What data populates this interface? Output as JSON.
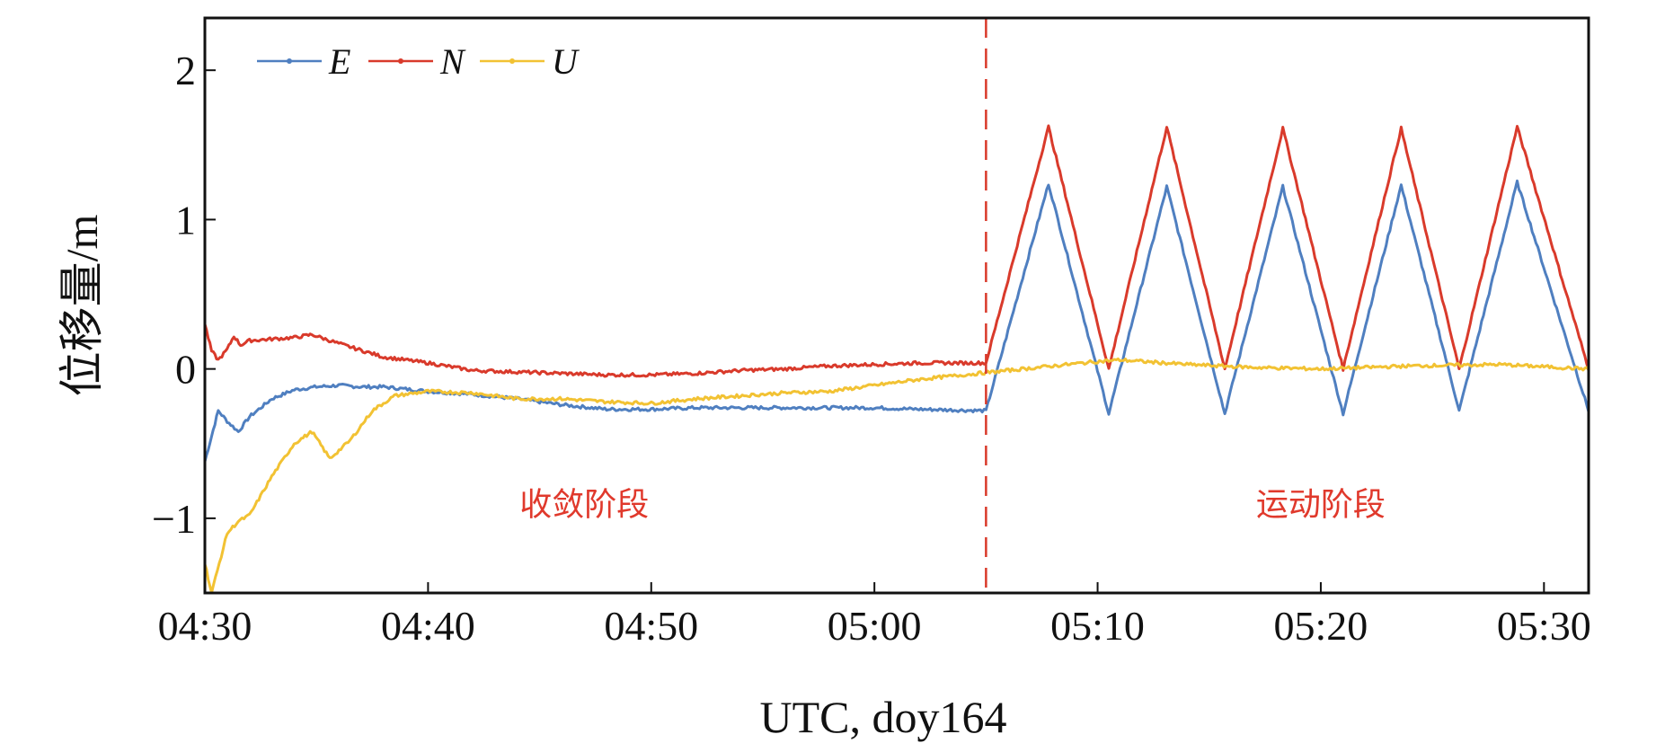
{
  "chart_data": {
    "type": "line",
    "title": "",
    "xlabel": "UTC, doy164",
    "ylabel": "位移量/m",
    "xlim": [
      "04:30",
      "05:32"
    ],
    "ylim": [
      -1.5,
      2.35
    ],
    "x_ticks": [
      "04:30",
      "04:40",
      "04:50",
      "05:00",
      "05:10",
      "05:20",
      "05:30"
    ],
    "y_ticks": [
      {
        "value": -1,
        "label": "−1"
      },
      {
        "value": 0,
        "label": "0"
      },
      {
        "value": 1,
        "label": "1"
      },
      {
        "value": 2,
        "label": "2"
      }
    ],
    "grid": false,
    "legend_position": "top-left",
    "divider_time": "05:05",
    "phase_labels": [
      {
        "text": "收敛阶段",
        "time": "04:47",
        "value": -0.98
      },
      {
        "text": "运动阶段",
        "time": "05:20",
        "value": -0.98
      }
    ],
    "series": [
      {
        "name": "E",
        "color": "#4f7fc0",
        "points": [
          [
            "04:30",
            -0.62
          ],
          [
            "04:30.3",
            -0.45
          ],
          [
            "04:30.6",
            -0.28
          ],
          [
            "04:31",
            -0.35
          ],
          [
            "04:31.5",
            -0.42
          ],
          [
            "04:32",
            -0.32
          ],
          [
            "04:33",
            -0.2
          ],
          [
            "04:34",
            -0.14
          ],
          [
            "04:35",
            -0.12
          ],
          [
            "04:36",
            -0.11
          ],
          [
            "04:37",
            -0.12
          ],
          [
            "04:38",
            -0.12
          ],
          [
            "04:40",
            -0.15
          ],
          [
            "04:42",
            -0.17
          ],
          [
            "04:44",
            -0.2
          ],
          [
            "04:46",
            -0.24
          ],
          [
            "04:48",
            -0.27
          ],
          [
            "04:50",
            -0.27
          ],
          [
            "04:52",
            -0.26
          ],
          [
            "04:54",
            -0.26
          ],
          [
            "04:56",
            -0.26
          ],
          [
            "04:58",
            -0.26
          ],
          [
            "05:00",
            -0.26
          ],
          [
            "05:02",
            -0.27
          ],
          [
            "05:05",
            -0.28
          ],
          [
            "05:07.8",
            1.24
          ],
          [
            "05:10.5",
            -0.3
          ],
          [
            "05:13.1",
            1.22
          ],
          [
            "05:15.7",
            -0.3
          ],
          [
            "05:18.3",
            1.22
          ],
          [
            "05:21",
            -0.3
          ],
          [
            "05:23.6",
            1.23
          ],
          [
            "05:26.2",
            -0.28
          ],
          [
            "05:28.8",
            1.25
          ],
          [
            "05:32",
            -0.28
          ]
        ]
      },
      {
        "name": "N",
        "color": "#d93a2b",
        "points": [
          [
            "04:30",
            0.3
          ],
          [
            "04:30.3",
            0.12
          ],
          [
            "04:30.6",
            0.06
          ],
          [
            "04:31",
            0.13
          ],
          [
            "04:31.3",
            0.22
          ],
          [
            "04:31.6",
            0.16
          ],
          [
            "04:32",
            0.19
          ],
          [
            "04:33",
            0.2
          ],
          [
            "04:34",
            0.21
          ],
          [
            "04:34.8",
            0.23
          ],
          [
            "04:36",
            0.17
          ],
          [
            "04:38",
            0.08
          ],
          [
            "04:40",
            0.04
          ],
          [
            "04:42",
            -0.01
          ],
          [
            "04:44",
            -0.02
          ],
          [
            "04:46",
            -0.03
          ],
          [
            "04:48",
            -0.04
          ],
          [
            "04:50",
            -0.04
          ],
          [
            "04:52",
            -0.03
          ],
          [
            "04:54",
            -0.01
          ],
          [
            "04:56",
            0.0
          ],
          [
            "04:58",
            0.02
          ],
          [
            "05:00",
            0.03
          ],
          [
            "05:02",
            0.04
          ],
          [
            "05:05",
            0.04
          ],
          [
            "05:07.8",
            1.62
          ],
          [
            "05:10.5",
            0.0
          ],
          [
            "05:13.1",
            1.62
          ],
          [
            "05:15.7",
            0.0
          ],
          [
            "05:18.3",
            1.61
          ],
          [
            "05:21",
            0.0
          ],
          [
            "05:23.6",
            1.61
          ],
          [
            "05:26.2",
            0.0
          ],
          [
            "05:28.8",
            1.62
          ],
          [
            "05:32",
            0.0
          ]
        ]
      },
      {
        "name": "U",
        "color": "#f2c233",
        "points": [
          [
            "04:30",
            -1.3
          ],
          [
            "04:30.3",
            -1.5
          ],
          [
            "04:31",
            -1.1
          ],
          [
            "04:31.5",
            -1.02
          ],
          [
            "04:32",
            -0.98
          ],
          [
            "04:33",
            -0.72
          ],
          [
            "04:34",
            -0.5
          ],
          [
            "04:34.8",
            -0.42
          ],
          [
            "04:35.6",
            -0.6
          ],
          [
            "04:36.5",
            -0.48
          ],
          [
            "04:37.5",
            -0.28
          ],
          [
            "04:38.5",
            -0.18
          ],
          [
            "04:40",
            -0.15
          ],
          [
            "04:42",
            -0.16
          ],
          [
            "04:44",
            -0.2
          ],
          [
            "04:46",
            -0.2
          ],
          [
            "04:48",
            -0.22
          ],
          [
            "04:50",
            -0.23
          ],
          [
            "04:52",
            -0.2
          ],
          [
            "04:54",
            -0.18
          ],
          [
            "04:56",
            -0.16
          ],
          [
            "04:58",
            -0.15
          ],
          [
            "05:00",
            -0.11
          ],
          [
            "05:02",
            -0.07
          ],
          [
            "05:04",
            -0.04
          ],
          [
            "05:06",
            -0.01
          ],
          [
            "05:08",
            0.02
          ],
          [
            "05:10",
            0.05
          ],
          [
            "05:11",
            0.06
          ],
          [
            "05:14",
            0.03
          ],
          [
            "05:17",
            0.01
          ],
          [
            "05:20",
            0.0
          ],
          [
            "05:24",
            0.02
          ],
          [
            "05:28",
            0.03
          ],
          [
            "05:32",
            0.0
          ]
        ]
      }
    ]
  }
}
